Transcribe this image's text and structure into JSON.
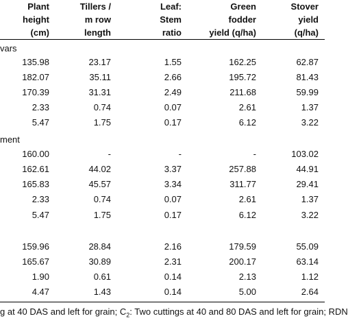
{
  "table": {
    "headers": [
      {
        "lines": [
          "Plant",
          "height",
          "(cm)"
        ]
      },
      {
        "lines": [
          "Tillers /",
          "m row",
          "length"
        ]
      },
      {
        "lines": [
          "Leaf:",
          "Stem",
          "ratio"
        ]
      },
      {
        "lines": [
          "Green",
          "fodder",
          "yield (q/ha)"
        ]
      },
      {
        "lines": [
          "Stover",
          "yield",
          "(q/ha)"
        ]
      }
    ],
    "sections": [
      {
        "label": "vars",
        "rows": [
          [
            "135.98",
            "23.17",
            "1.55",
            "162.25",
            "62.87"
          ],
          [
            "182.07",
            "35.11",
            "2.66",
            "195.72",
            "81.43"
          ],
          [
            "170.39",
            "31.31",
            "2.49",
            "211.68",
            "59.99"
          ],
          [
            "2.33",
            "0.74",
            "0.07",
            "2.61",
            "1.37"
          ],
          [
            "5.47",
            "1.75",
            "0.17",
            "6.12",
            "3.22"
          ]
        ]
      },
      {
        "label": "ment",
        "rows": [
          [
            "160.00",
            "-",
            "-",
            "-",
            "103.02"
          ],
          [
            "162.61",
            "44.02",
            "3.37",
            "257.88",
            "44.91"
          ],
          [
            "165.83",
            "45.57",
            "3.34",
            "311.77",
            "29.41"
          ],
          [
            "2.33",
            "0.74",
            "0.07",
            "2.61",
            "1.37"
          ],
          [
            "5.47",
            "1.75",
            "0.17",
            "6.12",
            "3.22"
          ]
        ]
      },
      {
        "label": "",
        "rows": [
          [
            "159.96",
            "28.84",
            "2.16",
            "179.59",
            "55.09"
          ],
          [
            "165.67",
            "30.89",
            "2.31",
            "200.17",
            "63.14"
          ],
          [
            "1.90",
            "0.61",
            "0.14",
            "2.13",
            "1.12"
          ],
          [
            "4.47",
            "1.43",
            "0.14",
            "5.00",
            "2.64"
          ]
        ]
      }
    ]
  },
  "footnote": {
    "part1": "g at 40 DAS and left for grain;  C",
    "subscript": "2",
    "part2": ": Two cuttings at 40 and 80 DAS and left for grain; RDN"
  }
}
